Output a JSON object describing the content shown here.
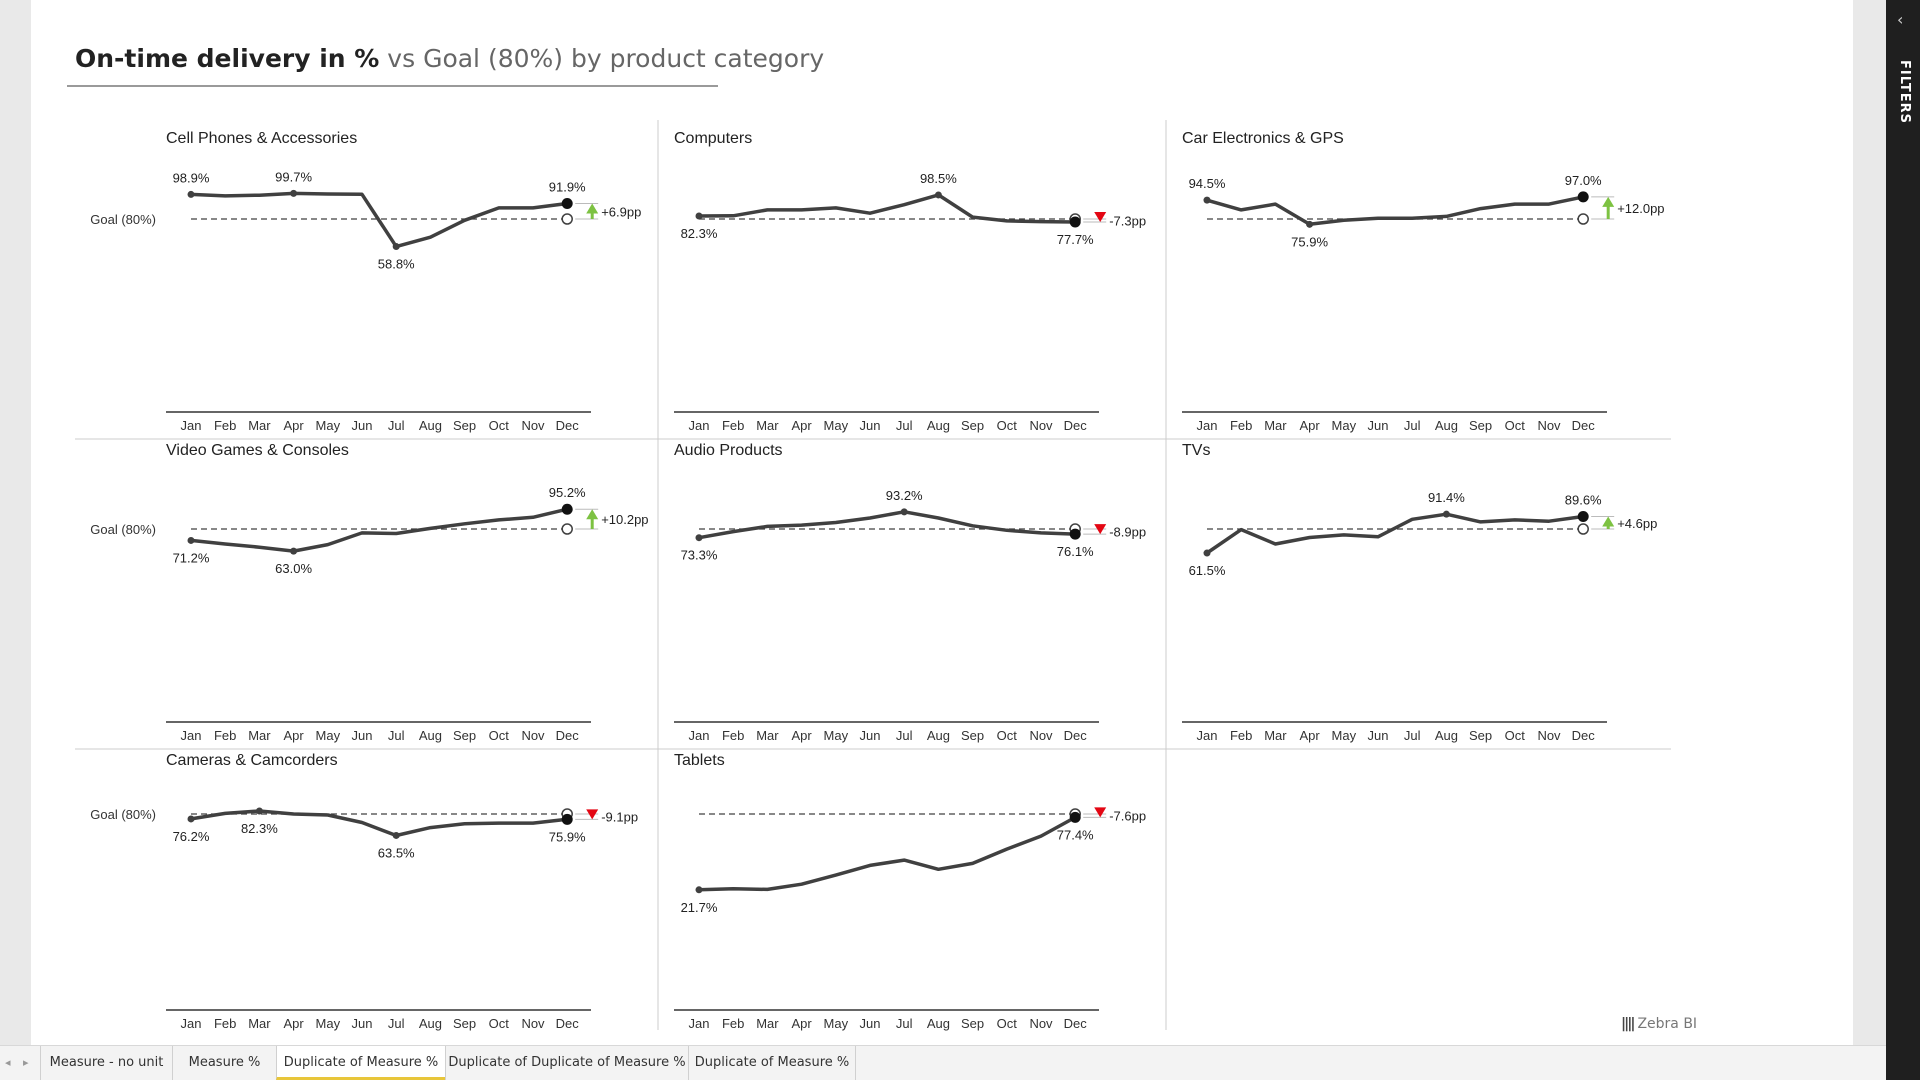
{
  "report": {
    "title_bold": "On-time delivery in %",
    "title_rest": " vs Goal (80%) by product category"
  },
  "filters_label": "FILTERS",
  "brand": "Zebra BI",
  "tabs": [
    {
      "label": "Measure - no unit",
      "active": false
    },
    {
      "label": "Measure %",
      "active": false
    },
    {
      "label": "Duplicate of Measure %",
      "active": true
    },
    {
      "label": "Duplicate of Duplicate of Measure %",
      "active": false
    },
    {
      "label": "Duplicate of Measure %",
      "active": false
    }
  ],
  "colors": {
    "line": "#404040",
    "goal": "#404040",
    "positive": "#7dc242",
    "negative": "#e30613",
    "grid": "#cccccc",
    "active_tab": "#e8c63a"
  },
  "chart_data": {
    "type": "line",
    "goal": 80,
    "goal_label": "Goal (80%)",
    "months": [
      "Jan",
      "Feb",
      "Mar",
      "Apr",
      "May",
      "Jun",
      "Jul",
      "Aug",
      "Sep",
      "Oct",
      "Nov",
      "Dec"
    ],
    "panels": [
      {
        "title": "Cell Phones & Accessories",
        "show_goal_label": true,
        "values": [
          98.9,
          97.8,
          98.3,
          99.7,
          99.2,
          99.0,
          58.8,
          66.0,
          79.0,
          88.5,
          88.5,
          91.9
        ],
        "labels": [
          {
            "i": 0,
            "text": "98.9%",
            "pos": "above"
          },
          {
            "i": 3,
            "text": "99.7%",
            "pos": "above"
          },
          {
            "i": 6,
            "text": "58.8%",
            "pos": "below"
          },
          {
            "i": 11,
            "text": "91.9%",
            "pos": "above"
          }
        ],
        "variance": "+6.9pp"
      },
      {
        "title": "Computers",
        "show_goal_label": false,
        "values": [
          82.3,
          82.5,
          87.0,
          87.0,
          88.5,
          84.5,
          91.0,
          98.5,
          81.5,
          78.5,
          78.0,
          77.7
        ],
        "labels": [
          {
            "i": 0,
            "text": "82.3%",
            "pos": "below"
          },
          {
            "i": 7,
            "text": "98.5%",
            "pos": "above"
          },
          {
            "i": 11,
            "text": "77.7%",
            "pos": "below"
          }
        ],
        "variance": "-7.3pp"
      },
      {
        "title": "Car Electronics & GPS",
        "show_goal_label": false,
        "values": [
          94.5,
          87.0,
          91.5,
          75.9,
          79.0,
          80.5,
          80.5,
          82.0,
          88.0,
          91.5,
          91.5,
          97.0
        ],
        "labels": [
          {
            "i": 0,
            "text": "94.5%",
            "pos": "above"
          },
          {
            "i": 3,
            "text": "75.9%",
            "pos": "below"
          },
          {
            "i": 11,
            "text": "97.0%",
            "pos": "above"
          }
        ],
        "variance": "+12.0pp"
      },
      {
        "title": "Video Games & Consoles",
        "show_goal_label": true,
        "values": [
          71.2,
          68.5,
          66.0,
          63.0,
          68.0,
          77.0,
          76.5,
          80.5,
          84.0,
          87.0,
          89.0,
          95.2
        ],
        "labels": [
          {
            "i": 0,
            "text": "71.2%",
            "pos": "below"
          },
          {
            "i": 3,
            "text": "63.0%",
            "pos": "below"
          },
          {
            "i": 11,
            "text": "95.2%",
            "pos": "above"
          }
        ],
        "variance": "+10.2pp"
      },
      {
        "title": "Audio Products",
        "show_goal_label": false,
        "values": [
          73.3,
          78.0,
          82.0,
          83.0,
          85.0,
          88.5,
          93.2,
          88.5,
          82.5,
          79.0,
          77.0,
          76.1
        ],
        "labels": [
          {
            "i": 0,
            "text": "73.3%",
            "pos": "below"
          },
          {
            "i": 6,
            "text": "93.2%",
            "pos": "above"
          },
          {
            "i": 11,
            "text": "76.1%",
            "pos": "below"
          }
        ],
        "variance": "-8.9pp"
      },
      {
        "title": "TVs",
        "show_goal_label": false,
        "values": [
          61.5,
          79.5,
          68.5,
          73.5,
          75.5,
          74.0,
          87.5,
          91.4,
          85.5,
          87.0,
          86.0,
          89.6
        ],
        "labels": [
          {
            "i": 0,
            "text": "61.5%",
            "pos": "below"
          },
          {
            "i": 7,
            "text": "91.4%",
            "pos": "above"
          },
          {
            "i": 11,
            "text": "89.6%",
            "pos": "above"
          }
        ],
        "variance": "+4.6pp"
      },
      {
        "title": "Cameras & Camcorders",
        "show_goal_label": true,
        "values": [
          76.2,
          80.5,
          82.3,
          80.0,
          79.2,
          73.5,
          63.5,
          69.5,
          72.5,
          73.0,
          73.0,
          75.9
        ],
        "labels": [
          {
            "i": 0,
            "text": "76.2%",
            "pos": "below"
          },
          {
            "i": 2,
            "text": "82.3%",
            "pos": "below"
          },
          {
            "i": 6,
            "text": "63.5%",
            "pos": "below"
          },
          {
            "i": 11,
            "text": "75.9%",
            "pos": "below"
          }
        ],
        "variance": "-9.1pp"
      },
      {
        "title": "Tablets",
        "show_goal_label": false,
        "values": [
          21.7,
          22.5,
          22.0,
          26.0,
          33.0,
          40.5,
          44.5,
          37.5,
          42.0,
          53.0,
          63.0,
          77.4
        ],
        "labels": [
          {
            "i": 0,
            "text": "21.7%",
            "pos": "below"
          },
          {
            "i": 11,
            "text": "77.4%",
            "pos": "below"
          }
        ],
        "variance": "-7.6pp"
      }
    ]
  }
}
